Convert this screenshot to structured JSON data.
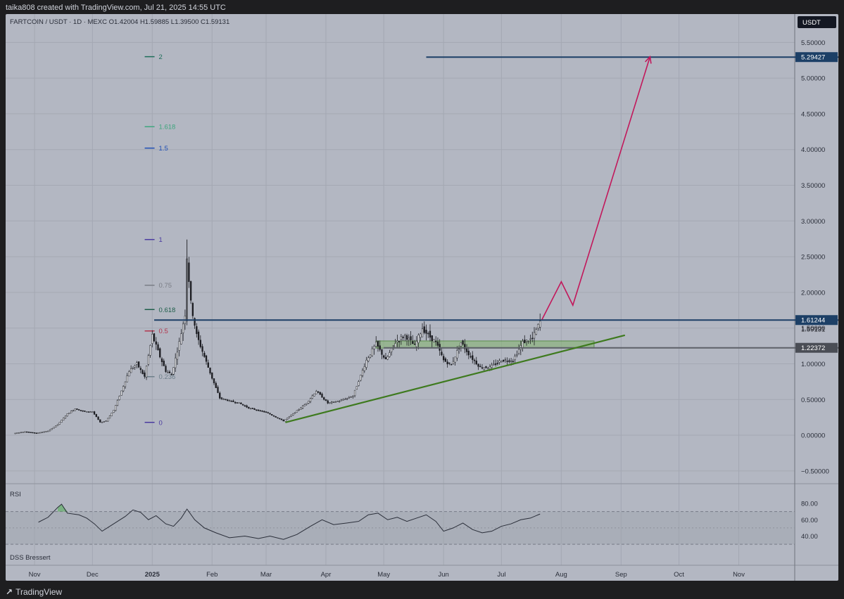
{
  "header_text": "taika808 created with TradingView.com, Jul 21, 2025 14:55 UTC",
  "footer_brand": "TradingView",
  "chart_data": {
    "type": "candlestick",
    "symbol_line": "FARTCOIN / USDT · 1D · MEXC  O1.42004  H1.59885  L1.39500  C1.59131",
    "currency": "USDT",
    "price_axis": [
      "5.50000",
      "5.00000",
      "4.50000",
      "4.00000",
      "3.50000",
      "3.00000",
      "2.50000",
      "2.00000",
      "1.50000",
      "1.00000",
      "0.50000",
      "0.00000",
      "−0.50000"
    ],
    "ylim": [
      -0.6,
      5.7
    ],
    "x_start": "2024-10-17",
    "x_end": "2025-11-30",
    "x_ticks": [
      {
        "label": "Nov",
        "date": "2024-11-01"
      },
      {
        "label": "Dec",
        "date": "2024-12-01"
      },
      {
        "label": "2025",
        "date": "2025-01-01",
        "bold": true
      },
      {
        "label": "Feb",
        "date": "2025-02-01"
      },
      {
        "label": "Mar",
        "date": "2025-03-01"
      },
      {
        "label": "Apr",
        "date": "2025-04-01"
      },
      {
        "label": "May",
        "date": "2025-05-01"
      },
      {
        "label": "Jun",
        "date": "2025-06-01"
      },
      {
        "label": "Jul",
        "date": "2025-07-01"
      },
      {
        "label": "Aug",
        "date": "2025-08-01"
      },
      {
        "label": "Sep",
        "date": "2025-09-01"
      },
      {
        "label": "Oct",
        "date": "2025-10-01"
      },
      {
        "label": "Nov",
        "date": "2025-11-01"
      }
    ],
    "price_path": [
      [
        "2024-10-22",
        0.03
      ],
      [
        "2024-10-27",
        0.05
      ],
      [
        "2024-11-02",
        0.03
      ],
      [
        "2024-11-08",
        0.06
      ],
      [
        "2024-11-13",
        0.15
      ],
      [
        "2024-11-18",
        0.3
      ],
      [
        "2024-11-22",
        0.37
      ],
      [
        "2024-11-27",
        0.33
      ],
      [
        "2024-12-01",
        0.33
      ],
      [
        "2024-12-05",
        0.18
      ],
      [
        "2024-12-08",
        0.2
      ],
      [
        "2024-12-12",
        0.35
      ],
      [
        "2024-12-16",
        0.62
      ],
      [
        "2024-12-20",
        0.9
      ],
      [
        "2024-12-24",
        1.0
      ],
      [
        "2024-12-28",
        0.82
      ],
      [
        "2025-01-01",
        1.4
      ],
      [
        "2025-01-05",
        1.1
      ],
      [
        "2025-01-08",
        0.9
      ],
      [
        "2025-01-11",
        0.85
      ],
      [
        "2025-01-15",
        1.3
      ],
      [
        "2025-01-18",
        1.7
      ],
      [
        "2025-01-19",
        2.5
      ],
      [
        "2025-01-21",
        1.85
      ],
      [
        "2025-01-24",
        1.4
      ],
      [
        "2025-01-28",
        1.1
      ],
      [
        "2025-02-01",
        0.8
      ],
      [
        "2025-02-05",
        0.52
      ],
      [
        "2025-02-10",
        0.48
      ],
      [
        "2025-02-15",
        0.45
      ],
      [
        "2025-02-20",
        0.38
      ],
      [
        "2025-03-01",
        0.32
      ],
      [
        "2025-03-10",
        0.2
      ],
      [
        "2025-03-15",
        0.3
      ],
      [
        "2025-03-22",
        0.45
      ],
      [
        "2025-03-27",
        0.62
      ],
      [
        "2025-04-02",
        0.45
      ],
      [
        "2025-04-08",
        0.48
      ],
      [
        "2025-04-15",
        0.55
      ],
      [
        "2025-04-22",
        1.05
      ],
      [
        "2025-04-27",
        1.28
      ],
      [
        "2025-05-02",
        1.05
      ],
      [
        "2025-05-07",
        1.3
      ],
      [
        "2025-05-12",
        1.4
      ],
      [
        "2025-05-17",
        1.25
      ],
      [
        "2025-05-21",
        1.5
      ],
      [
        "2025-05-24",
        1.4
      ],
      [
        "2025-05-28",
        1.3
      ],
      [
        "2025-06-01",
        1.05
      ],
      [
        "2025-06-05",
        0.98
      ],
      [
        "2025-06-10",
        1.3
      ],
      [
        "2025-06-15",
        1.1
      ],
      [
        "2025-06-20",
        0.95
      ],
      [
        "2025-06-25",
        0.95
      ],
      [
        "2025-07-01",
        1.05
      ],
      [
        "2025-07-07",
        1.05
      ],
      [
        "2025-07-12",
        1.3
      ],
      [
        "2025-07-17",
        1.35
      ],
      [
        "2025-07-21",
        1.59
      ]
    ],
    "horizontal_levels": [
      {
        "from": "2025-01-02",
        "value": 1.61244,
        "label": "1.61244",
        "color": "#1c3f66"
      },
      {
        "from": "2025-05-23",
        "value": 5.29427,
        "label": "5.29427",
        "color": "#1c3f66"
      },
      {
        "from": "2025-05-01",
        "value": 1.22372,
        "label": "1.22372",
        "color": "#5d6068"
      }
    ],
    "last_price": {
      "value": 1.59131,
      "label": "1.59131"
    },
    "fib_levels": [
      {
        "label": "0",
        "value": 0.18,
        "color": "#4a3aa0"
      },
      {
        "label": "0.236",
        "value": 0.82,
        "color": "#6d7f8a"
      },
      {
        "label": "0.5",
        "value": 1.46,
        "color": "#b3344c"
      },
      {
        "label": "0.618",
        "value": 1.76,
        "color": "#1e5e4a"
      },
      {
        "label": "0.75",
        "value": 2.1,
        "color": "#7a7d85"
      },
      {
        "label": "1",
        "value": 2.74,
        "color": "#4a3aa0"
      },
      {
        "label": "1.5",
        "value": 4.02,
        "color": "#1f4fb5"
      },
      {
        "label": "1.618",
        "value": 4.32,
        "color": "#3fa67e"
      },
      {
        "label": "2",
        "value": 5.3,
        "color": "#1e6e5a"
      }
    ],
    "support_trendline": {
      "from": [
        "2025-03-11",
        0.18
      ],
      "to": [
        "2025-09-03",
        1.4
      ],
      "color": "#3e7a1e"
    },
    "consolidation_box": {
      "x0": "2025-04-27",
      "x1": "2025-08-18",
      "y0": 1.22,
      "y1": 1.32,
      "color": "#7fb36b"
    },
    "projection_path": [
      [
        "2025-07-22",
        1.62
      ],
      [
        "2025-08-01",
        2.15
      ],
      [
        "2025-08-07",
        1.82
      ],
      [
        "2025-09-16",
        5.3
      ]
    ],
    "rsi": {
      "label": "RSI",
      "axis": [
        "80.00",
        "60.00",
        "40.00"
      ],
      "levels": [
        80,
        60,
        40
      ],
      "band": [
        70,
        30
      ],
      "ylim": [
        25,
        92
      ],
      "points": [
        [
          "2024-11-03",
          57
        ],
        [
          "2024-11-08",
          63
        ],
        [
          "2024-11-13",
          75
        ],
        [
          "2024-11-15",
          79
        ],
        [
          "2024-11-18",
          68
        ],
        [
          "2024-11-24",
          66
        ],
        [
          "2024-11-28",
          62
        ],
        [
          "2024-12-02",
          55
        ],
        [
          "2024-12-06",
          46
        ],
        [
          "2024-12-10",
          52
        ],
        [
          "2024-12-14",
          58
        ],
        [
          "2024-12-18",
          64
        ],
        [
          "2024-12-22",
          72
        ],
        [
          "2024-12-26",
          69
        ],
        [
          "2024-12-30",
          60
        ],
        [
          "2025-01-03",
          65
        ],
        [
          "2025-01-08",
          55
        ],
        [
          "2025-01-12",
          52
        ],
        [
          "2025-01-16",
          62
        ],
        [
          "2025-01-19",
          73
        ],
        [
          "2025-01-23",
          60
        ],
        [
          "2025-01-28",
          50
        ],
        [
          "2025-02-03",
          44
        ],
        [
          "2025-02-10",
          38
        ],
        [
          "2025-02-18",
          40
        ],
        [
          "2025-02-25",
          37
        ],
        [
          "2025-03-03",
          40
        ],
        [
          "2025-03-10",
          36
        ],
        [
          "2025-03-17",
          42
        ],
        [
          "2025-03-24",
          52
        ],
        [
          "2025-03-30",
          60
        ],
        [
          "2025-04-05",
          54
        ],
        [
          "2025-04-12",
          56
        ],
        [
          "2025-04-18",
          58
        ],
        [
          "2025-04-23",
          66
        ],
        [
          "2025-04-28",
          68
        ],
        [
          "2025-05-03",
          60
        ],
        [
          "2025-05-08",
          63
        ],
        [
          "2025-05-13",
          58
        ],
        [
          "2025-05-18",
          62
        ],
        [
          "2025-05-23",
          66
        ],
        [
          "2025-05-28",
          58
        ],
        [
          "2025-06-01",
          46
        ],
        [
          "2025-06-06",
          50
        ],
        [
          "2025-06-11",
          56
        ],
        [
          "2025-06-16",
          48
        ],
        [
          "2025-06-21",
          44
        ],
        [
          "2025-06-26",
          46
        ],
        [
          "2025-07-01",
          52
        ],
        [
          "2025-07-06",
          55
        ],
        [
          "2025-07-11",
          60
        ],
        [
          "2025-07-16",
          62
        ],
        [
          "2025-07-21",
          67
        ]
      ]
    },
    "dss_label": "DSS Bressert"
  }
}
